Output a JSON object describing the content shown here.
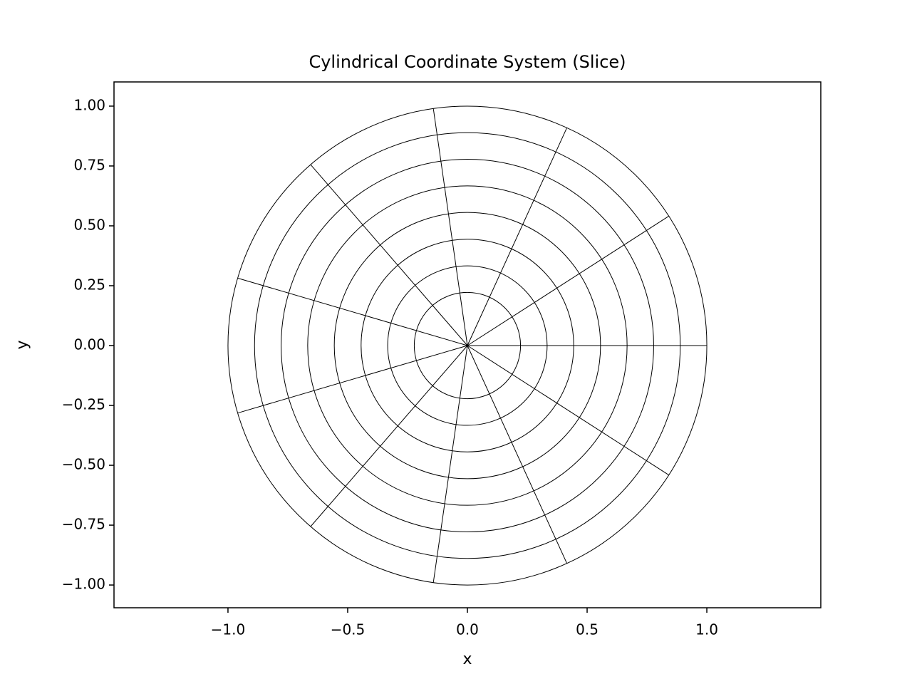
{
  "chart_data": {
    "type": "polar-grid",
    "title": "Cylindrical Coordinate System (Slice)",
    "x_label": "x",
    "y_label": "y",
    "radii": [
      0.222,
      0.333,
      0.444,
      0.556,
      0.667,
      0.778,
      0.889,
      1.0
    ],
    "angles_deg": [
      0,
      32.73,
      65.45,
      98.18,
      130.91,
      163.64,
      196.36,
      229.09,
      261.82,
      294.55,
      327.27
    ],
    "color": "#000000",
    "xlim": [
      -1.476,
      1.476
    ],
    "ylim": [
      -1.095,
      1.101
    ],
    "xticks": [
      {
        "value": -1.0,
        "label": "−1.0"
      },
      {
        "value": -0.5,
        "label": "−0.5"
      },
      {
        "value": 0.0,
        "label": "0.0"
      },
      {
        "value": 0.5,
        "label": "0.5"
      },
      {
        "value": 1.0,
        "label": "1.0"
      }
    ],
    "yticks": [
      {
        "value": -1.0,
        "label": "−1.00"
      },
      {
        "value": -0.75,
        "label": "−0.75"
      },
      {
        "value": -0.5,
        "label": "−0.50"
      },
      {
        "value": -0.25,
        "label": "−0.25"
      },
      {
        "value": 0.0,
        "label": "0.00"
      },
      {
        "value": 0.25,
        "label": "0.25"
      },
      {
        "value": 0.5,
        "label": "0.50"
      },
      {
        "value": 0.75,
        "label": "0.75"
      },
      {
        "value": 1.0,
        "label": "1.00"
      }
    ]
  }
}
